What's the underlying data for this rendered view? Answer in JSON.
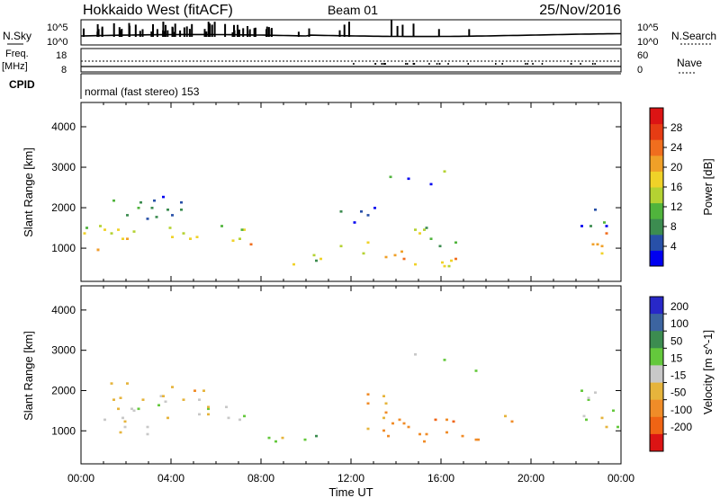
{
  "header": {
    "station": "Hokkaido West (fitACF)",
    "beam": "Beam 01",
    "date": "25/Nov/2016"
  },
  "strip": {
    "nsky_label": "N.Sky",
    "nsky_ticks": [
      "10^5",
      "10^0"
    ],
    "nsearch_label": "N.Search",
    "freq_label_line1": "Freq.",
    "freq_label_line2": "[MHz]",
    "freq_ticks": [
      "18",
      "8"
    ],
    "nave_label": "Nave",
    "nave_ticks": [
      "60",
      "0"
    ],
    "cpid_label": "CPID",
    "cpid_text": "normal (fast stereo) 153"
  },
  "x_axis": {
    "label": "Time UT",
    "ticks": [
      "00:00",
      "04:00",
      "08:00",
      "12:00",
      "16:00",
      "20:00",
      "00:00"
    ]
  },
  "colors": {
    "power": [
      "#0000f0",
      "#2850a8",
      "#3c8c50",
      "#50b43c",
      "#b4d232",
      "#f0d228",
      "#f0a028",
      "#f06e1e",
      "#e63c14",
      "#dc1414"
    ],
    "velocity": [
      "#2828c8",
      "#3c64a0",
      "#3c8c50",
      "#64c83c",
      "#c8c8c8",
      "#e6b43c",
      "#f08c28",
      "#f06414",
      "#dc1414"
    ]
  },
  "chart_data": [
    {
      "type": "heatmap",
      "title": "",
      "xlabel": "Time UT",
      "ylabel": "Slant Range [km]",
      "x_range_hours": [
        0,
        24
      ],
      "ylim": [
        180,
        4600
      ],
      "yticks": [
        1000,
        2000,
        3000,
        4000
      ],
      "colorbar_label": "Power [dB]",
      "colorbar_ticks": [
        "4",
        "8",
        "12",
        "16",
        "20",
        "24",
        "28"
      ],
      "colorbar_range": [
        0,
        32
      ],
      "blobs": [
        {
          "t": 1.6,
          "r": 1300,
          "dt": 1.9,
          "dr": 280,
          "v": 17
        },
        {
          "t": 0.9,
          "r": 1000,
          "dt": 1.0,
          "dr": 220,
          "v": 24
        },
        {
          "t": 3.6,
          "r": 1400,
          "dt": 1.6,
          "dr": 300,
          "v": 14
        },
        {
          "t": 6.2,
          "r": 1350,
          "dt": 1.4,
          "dr": 260,
          "v": 15
        },
        {
          "t": 7.8,
          "r": 1100,
          "dt": 0.4,
          "dr": 120,
          "v": 24
        },
        {
          "t": 3.0,
          "r": 2000,
          "dt": 2.5,
          "dr": 320,
          "v": 6
        },
        {
          "t": 9.0,
          "r": 600,
          "dt": 0.7,
          "dr": 250,
          "v": 20
        },
        {
          "t": 10.2,
          "r": 600,
          "dt": 1.0,
          "dr": 220,
          "v": 12
        },
        {
          "t": 12.8,
          "r": 900,
          "dt": 1.3,
          "dr": 300,
          "v": 18
        },
        {
          "t": 15.6,
          "r": 800,
          "dt": 1.6,
          "dr": 280,
          "v": 20
        },
        {
          "t": 16.2,
          "r": 1300,
          "dt": 1.5,
          "dr": 260,
          "v": 12
        },
        {
          "t": 14.8,
          "r": 2700,
          "dt": 1.3,
          "dr": 180,
          "v": 7
        },
        {
          "t": 15.6,
          "r": 2950,
          "dt": 1.0,
          "dr": 120,
          "v": 11
        },
        {
          "t": 12.5,
          "r": 1800,
          "dt": 1.0,
          "dr": 250,
          "v": 4
        },
        {
          "t": 23.2,
          "r": 1100,
          "dt": 1.1,
          "dr": 330,
          "v": 18
        },
        {
          "t": 22.7,
          "r": 1800,
          "dt": 1.0,
          "dr": 350,
          "v": 6
        }
      ]
    },
    {
      "type": "heatmap",
      "title": "",
      "xlabel": "Time UT",
      "ylabel": "Slant Range [km]",
      "x_range_hours": [
        0,
        24
      ],
      "ylim": [
        180,
        4600
      ],
      "yticks": [
        1000,
        2000,
        3000,
        4000
      ],
      "colorbar_label": "Velocity [m s^-1]",
      "colorbar_ticks": [
        "200",
        "100",
        "50",
        "15",
        "-15",
        "-50",
        "-100",
        "-200"
      ],
      "colorbar_range": [
        -200,
        200
      ],
      "blobs": [
        {
          "t": 2.5,
          "r": 1300,
          "dt": 2.4,
          "dr": 420,
          "v": 0
        },
        {
          "t": 6.2,
          "r": 1300,
          "dt": 1.5,
          "dr": 350,
          "v": -5
        },
        {
          "t": 3.2,
          "r": 1900,
          "dt": 2.6,
          "dr": 300,
          "v": -25
        },
        {
          "t": 9.0,
          "r": 700,
          "dt": 0.9,
          "dr": 230,
          "v": 0
        },
        {
          "t": 10.5,
          "r": 700,
          "dt": 0.9,
          "dr": 150,
          "v": 40
        },
        {
          "t": 13.0,
          "r": 1100,
          "dt": 1.4,
          "dr": 380,
          "v": -70
        },
        {
          "t": 15.6,
          "r": 1000,
          "dt": 2.4,
          "dr": 330,
          "v": -80
        },
        {
          "t": 18.8,
          "r": 1200,
          "dt": 0.8,
          "dr": 170,
          "v": -70
        },
        {
          "t": 13.0,
          "r": 1800,
          "dt": 1.0,
          "dr": 250,
          "v": -45
        },
        {
          "t": 15.5,
          "r": 2800,
          "dt": 1.1,
          "dr": 220,
          "v": 0
        },
        {
          "t": 17.2,
          "r": 2500,
          "dt": 0.8,
          "dr": 150,
          "v": 10
        },
        {
          "t": 23.2,
          "r": 1300,
          "dt": 1.1,
          "dr": 400,
          "v": 5
        },
        {
          "t": 22.6,
          "r": 1900,
          "dt": 0.8,
          "dr": 300,
          "v": 20
        }
      ]
    }
  ]
}
